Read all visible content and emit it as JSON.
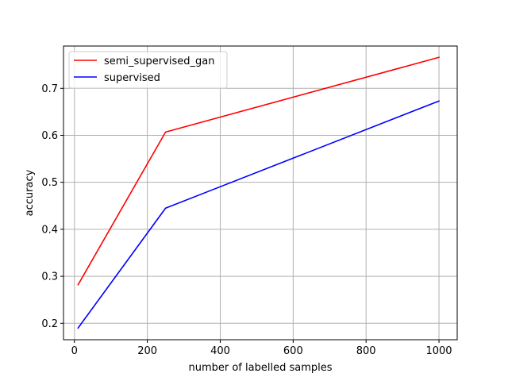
{
  "chart_data": {
    "type": "line",
    "title": "",
    "xlabel": "number of labelled samples",
    "ylabel": "accuracy",
    "xlim": [
      -30,
      1050
    ],
    "ylim": [
      0.165,
      0.79
    ],
    "xticks": [
      0,
      200,
      400,
      600,
      800,
      1000
    ],
    "xtick_labels": [
      "0",
      "200",
      "400",
      "600",
      "800",
      "1000"
    ],
    "yticks": [
      0.2,
      0.3,
      0.4,
      0.5,
      0.6,
      0.7
    ],
    "ytick_labels": [
      "0.2",
      "0.3",
      "0.4",
      "0.5",
      "0.6",
      "0.7"
    ],
    "grid": true,
    "legend_position": "top-left",
    "series": [
      {
        "name": "semi_supervised_gan",
        "color": "#ff0000",
        "x": [
          10,
          250,
          1000
        ],
        "y": [
          0.282,
          0.607,
          0.766
        ]
      },
      {
        "name": "supervised",
        "color": "#0000ff",
        "x": [
          10,
          250,
          1000
        ],
        "y": [
          0.19,
          0.445,
          0.673
        ]
      }
    ]
  }
}
